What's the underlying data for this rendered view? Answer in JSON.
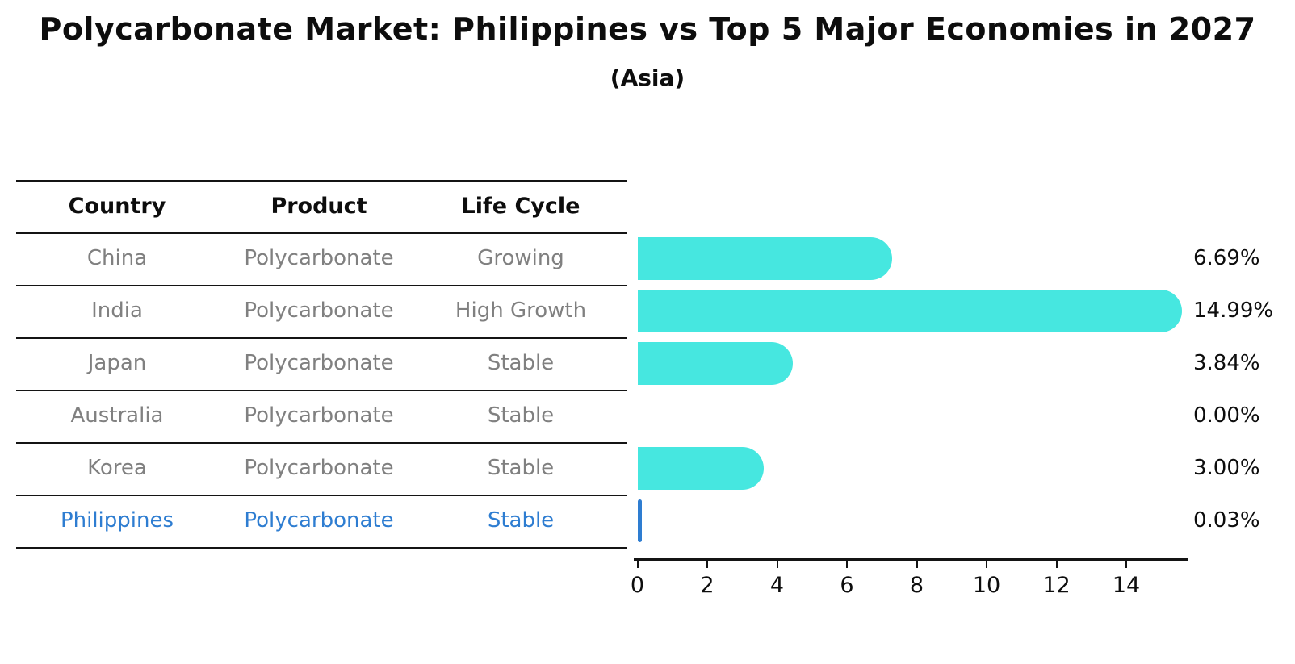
{
  "title": "Polycarbonate Market: Philippines vs Top 5 Major Economies in 2027",
  "subtitle": "(Asia)",
  "table": {
    "headers": [
      "Country",
      "Product",
      "Life Cycle"
    ],
    "rows": [
      {
        "country": "China",
        "product": "Polycarbonate",
        "life_cycle": "Growing"
      },
      {
        "country": "India",
        "product": "Polycarbonate",
        "life_cycle": "High Growth"
      },
      {
        "country": "Japan",
        "product": "Polycarbonate",
        "life_cycle": "Stable"
      },
      {
        "country": "Australia",
        "product": "Polycarbonate",
        "life_cycle": "Stable"
      },
      {
        "country": "Korea",
        "product": "Polycarbonate",
        "life_cycle": "Stable"
      },
      {
        "country": "Philippines",
        "product": "Polycarbonate",
        "life_cycle": "Stable"
      }
    ]
  },
  "chart_data": {
    "type": "bar",
    "orientation": "horizontal",
    "title": "Polycarbonate Market: Philippines vs Top 5 Major Economies in 2027",
    "subtitle": "(Asia)",
    "categories": [
      "China",
      "India",
      "Japan",
      "Australia",
      "Korea",
      "Philippines"
    ],
    "values": [
      6.69,
      14.99,
      3.84,
      0.0,
      3.0,
      0.03
    ],
    "value_labels": [
      "6.69%",
      "14.99%",
      "3.84%",
      "0.00%",
      "3.00%",
      "0.03%"
    ],
    "xticks": [
      0,
      2,
      4,
      6,
      8,
      10,
      12,
      14
    ],
    "xlim": [
      0,
      15.7
    ],
    "xlabel": "",
    "ylabel": "",
    "grid": false,
    "legend": "none",
    "bar_color": "#46e7e0",
    "highlight_color": "#2e7dd1",
    "highlight_index": 5
  },
  "colors": {
    "text": "#0d0d0d",
    "muted_text": "#808080",
    "rule": "#141414"
  }
}
